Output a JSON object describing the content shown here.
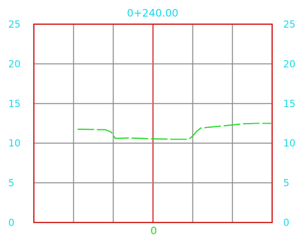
{
  "station_title": "0+240.00",
  "center_offset_label": "0",
  "colors": {
    "frame": "#d21f1f",
    "grid": "#8a8a8a",
    "label": "#17d9e6",
    "ground_line": "#1ed81e",
    "background": "#ffffff"
  },
  "chart_data": {
    "type": "line",
    "title": "0+240.00",
    "xlabel": "",
    "ylabel": "",
    "x_ticks": [
      "0"
    ],
    "y_ticks_left": [
      "0",
      "5",
      "10",
      "15",
      "20",
      "25"
    ],
    "y_ticks_right": [
      "0",
      "5",
      "10",
      "15",
      "20",
      "25"
    ],
    "xlim": [
      -30,
      30
    ],
    "ylim": [
      0,
      25
    ],
    "grid": true,
    "series": [
      {
        "line_style": "dashed",
        "x": [
          -19.0,
          -12.0,
          -10.5,
          -9.5,
          -6.0,
          -3.0,
          0.0,
          5.0,
          9.0,
          10.0,
          11.0,
          12.0,
          14.0,
          17.0,
          20.0,
          23.0,
          26.0,
          30.0
        ],
        "y": [
          11.75,
          11.7,
          11.4,
          10.6,
          10.65,
          10.6,
          10.55,
          10.5,
          10.5,
          10.9,
          11.5,
          11.9,
          12.0,
          12.15,
          12.3,
          12.45,
          12.5,
          12.5
        ]
      }
    ]
  }
}
